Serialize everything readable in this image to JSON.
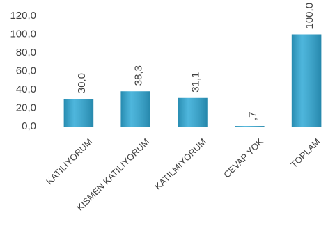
{
  "chart_data": {
    "type": "bar",
    "categories": [
      "KATILIYORUM",
      "KISMEN KATILIYORUM",
      "KATILMIYORUM",
      "CEVAP YOK",
      "TOPLAM"
    ],
    "values": [
      30.0,
      38.3,
      31.1,
      0.7,
      100.0
    ],
    "value_labels": [
      "30,0",
      "38,3",
      "31,1",
      ",7",
      "100,0"
    ],
    "color": "#2fa9d6",
    "ylim": [
      0,
      120
    ],
    "yticks": [
      {
        "value": 0,
        "label": "0,0"
      },
      {
        "value": 20,
        "label": "20,0"
      },
      {
        "value": 40,
        "label": "40,0"
      },
      {
        "value": 60,
        "label": "60,0"
      },
      {
        "value": 80,
        "label": "80,0"
      },
      {
        "value": 100,
        "label": "100,0"
      },
      {
        "value": 120,
        "label": "120,0"
      }
    ],
    "grid": false
  }
}
